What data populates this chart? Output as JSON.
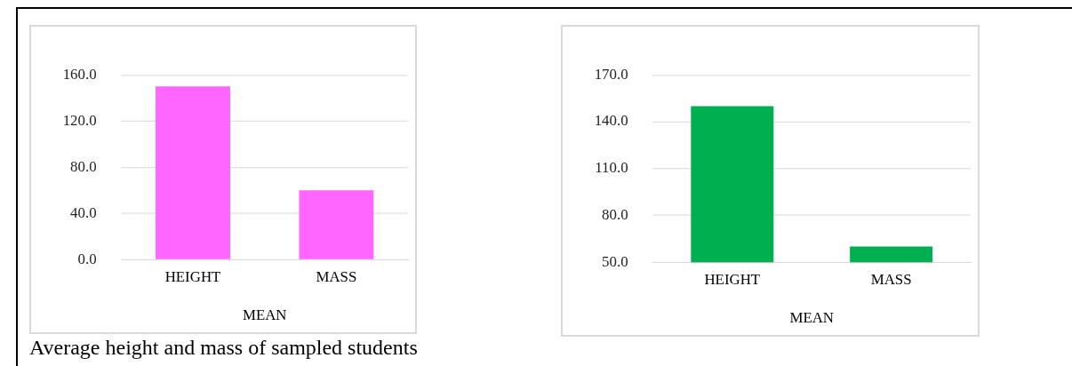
{
  "chart_data": [
    {
      "type": "bar",
      "categories": [
        "HEIGHT",
        "MASS"
      ],
      "xlabel": "MEAN",
      "values": [
        150,
        60
      ],
      "color": "#ff66ff",
      "ylim": [
        0,
        160
      ],
      "yticks": [
        {
          "value": 0,
          "label": "0.0"
        },
        {
          "value": 40,
          "label": "40.0"
        },
        {
          "value": 80,
          "label": "80.0"
        },
        {
          "value": 120,
          "label": "120.0"
        },
        {
          "value": 160,
          "label": "160.0"
        }
      ],
      "grid": "y",
      "legend": false,
      "annotations": [
        "Average height and mass of sampled students"
      ]
    },
    {
      "type": "bar",
      "categories": [
        "HEIGHT",
        "MASS"
      ],
      "xlabel": "MEAN",
      "values": [
        150,
        60
      ],
      "color": "#00b050",
      "ylim": [
        50,
        170
      ],
      "yticks": [
        {
          "value": 50,
          "label": "50.0"
        },
        {
          "value": 80,
          "label": "80.0"
        },
        {
          "value": 110,
          "label": "110.0"
        },
        {
          "value": 140,
          "label": "140.0"
        },
        {
          "value": 170,
          "label": "170.0"
        }
      ],
      "grid": "y",
      "legend": false
    }
  ]
}
